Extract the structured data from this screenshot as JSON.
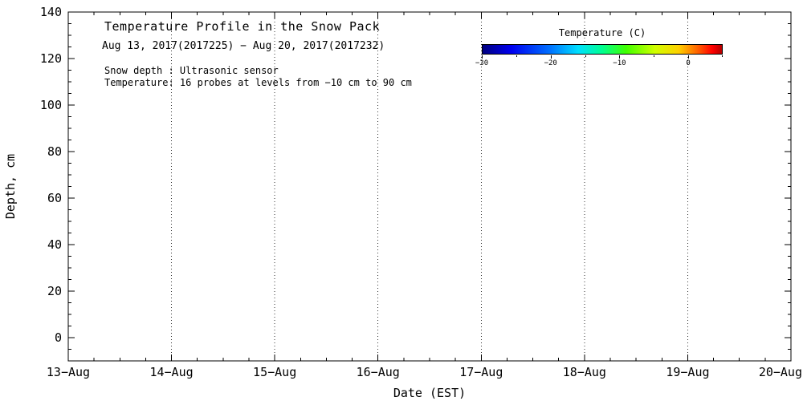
{
  "chart_data": {
    "type": "heatmap",
    "title": "Temperature Profile in the Snow Pack",
    "subtitle": "Aug 13, 2017(2017225) − Aug 20, 2017(2017232)",
    "annotations": {
      "snow_depth": "Snow depth : Ultrasonic sensor",
      "probes": "Temperature: 16 probes at levels from −10 cm to 90 cm"
    },
    "xlabel": "Date (EST)",
    "ylabel": "Depth, cm",
    "x_axis": {
      "tick_labels": [
        "13−Aug",
        "14−Aug",
        "15−Aug",
        "16−Aug",
        "17−Aug",
        "18−Aug",
        "19−Aug",
        "20−Aug"
      ],
      "minor_ticks_per_interval": 3
    },
    "y_axis": {
      "tick_values": [
        0,
        20,
        40,
        60,
        80,
        100,
        120,
        140
      ],
      "tick_labels": [
        "0",
        "20",
        "40",
        "60",
        "80",
        "100",
        "120",
        "140"
      ],
      "lim": [
        -10,
        140
      ],
      "minor_tick_step": 5
    },
    "grid": {
      "vertical": "dotted",
      "horizontal": "none"
    },
    "colorbar": {
      "label": "Temperature (C)",
      "min": -30,
      "max": 5,
      "tick_values": [
        -30,
        -20,
        -10,
        0
      ],
      "tick_labels": [
        "−30",
        "−20",
        "−10",
        "0"
      ],
      "minor_tick_step": 5,
      "gradient": [
        {
          "stop": 0.0,
          "color": "#000080"
        },
        {
          "stop": 0.12,
          "color": "#0000f0"
        },
        {
          "stop": 0.28,
          "color": "#0070ff"
        },
        {
          "stop": 0.4,
          "color": "#00e0ff"
        },
        {
          "stop": 0.5,
          "color": "#00ff90"
        },
        {
          "stop": 0.6,
          "color": "#40ff00"
        },
        {
          "stop": 0.72,
          "color": "#d0ff00"
        },
        {
          "stop": 0.82,
          "color": "#ffd000"
        },
        {
          "stop": 0.9,
          "color": "#ff6000"
        },
        {
          "stop": 0.96,
          "color": "#ff0000"
        },
        {
          "stop": 1.0,
          "color": "#b40000"
        }
      ]
    },
    "values": [],
    "background_color": "#ffffff",
    "axis_color": "#000000"
  }
}
